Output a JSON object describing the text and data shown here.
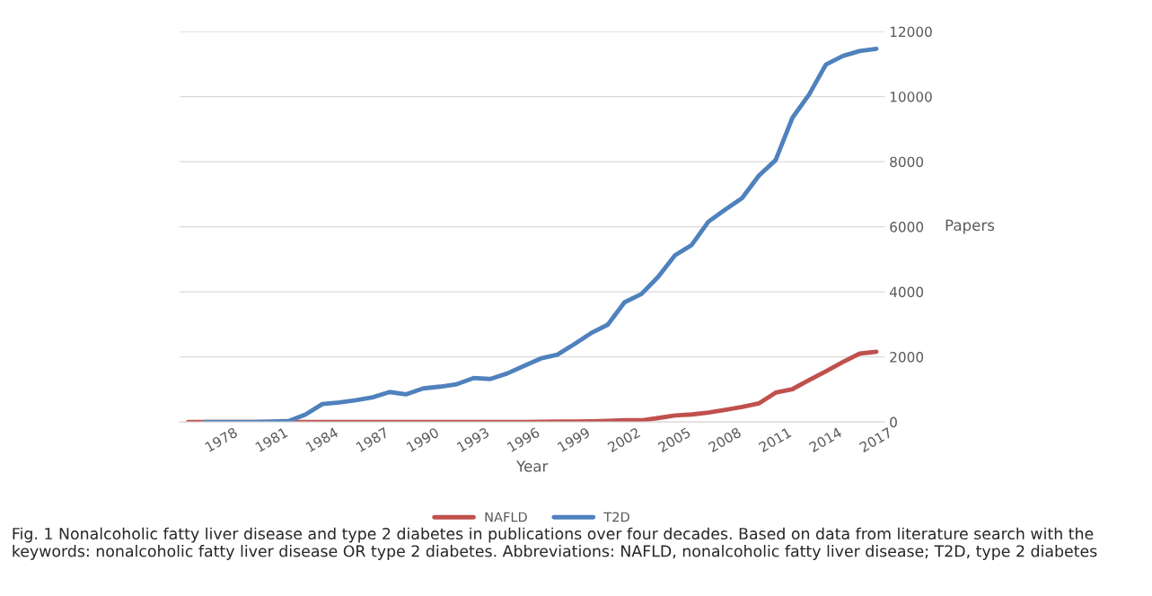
{
  "chart_data": {
    "type": "line",
    "xlabel": "Year",
    "ylabel": "Papers",
    "categories": [
      null,
      null,
      "1978",
      null,
      null,
      "1981",
      null,
      null,
      "1984",
      null,
      null,
      "1987",
      null,
      null,
      "1990",
      null,
      null,
      "1993",
      null,
      null,
      "1996",
      null,
      null,
      "1999",
      null,
      null,
      "2002",
      null,
      null,
      "2005",
      null,
      null,
      "2008",
      null,
      null,
      "2011",
      null,
      null,
      "2014",
      null,
      null,
      "2017"
    ],
    "series": [
      {
        "name": "NAFLD",
        "color": "#c0504d",
        "values": [
          0,
          0,
          0,
          0,
          0,
          0,
          0,
          0,
          0,
          0,
          0,
          0,
          0,
          0,
          0,
          0,
          0,
          0,
          0,
          0,
          0,
          5,
          10,
          10,
          20,
          30,
          50,
          50,
          120,
          200,
          230,
          290,
          370,
          460,
          570,
          900,
          1010,
          1290,
          1560,
          1840,
          2100,
          2160
        ]
      },
      {
        "name": "T2D",
        "color": "#4f81bd",
        "values": [
          null,
          0,
          0,
          0,
          0,
          10,
          30,
          230,
          550,
          600,
          670,
          760,
          920,
          850,
          1030,
          1085,
          1160,
          1350,
          1320,
          1490,
          1720,
          1950,
          2070,
          2390,
          2730,
          2990,
          3680,
          3930,
          4460,
          5120,
          5440,
          6160,
          6530,
          6880,
          7570,
          8050,
          9350,
          10070,
          10990,
          11250,
          11400,
          11470
        ]
      }
    ],
    "ylim": [
      0,
      12000
    ],
    "yticks": [
      0,
      2000,
      4000,
      6000,
      8000,
      10000,
      12000
    ],
    "grid": "y",
    "legend": "bottom",
    "line_style": "solid",
    "marker": "none",
    "annotations": [
      "Fig. 1 Nonalcoholic fatty liver disease and type 2 diabetes in publications over four decades. Based on data from literature search with the keywords: nonalcoholic fatty liver disease OR type 2 diabetes. Abbreviations: NAFLD, nonalcoholic fatty liver disease; T2D, type 2 diabetes"
    ]
  }
}
